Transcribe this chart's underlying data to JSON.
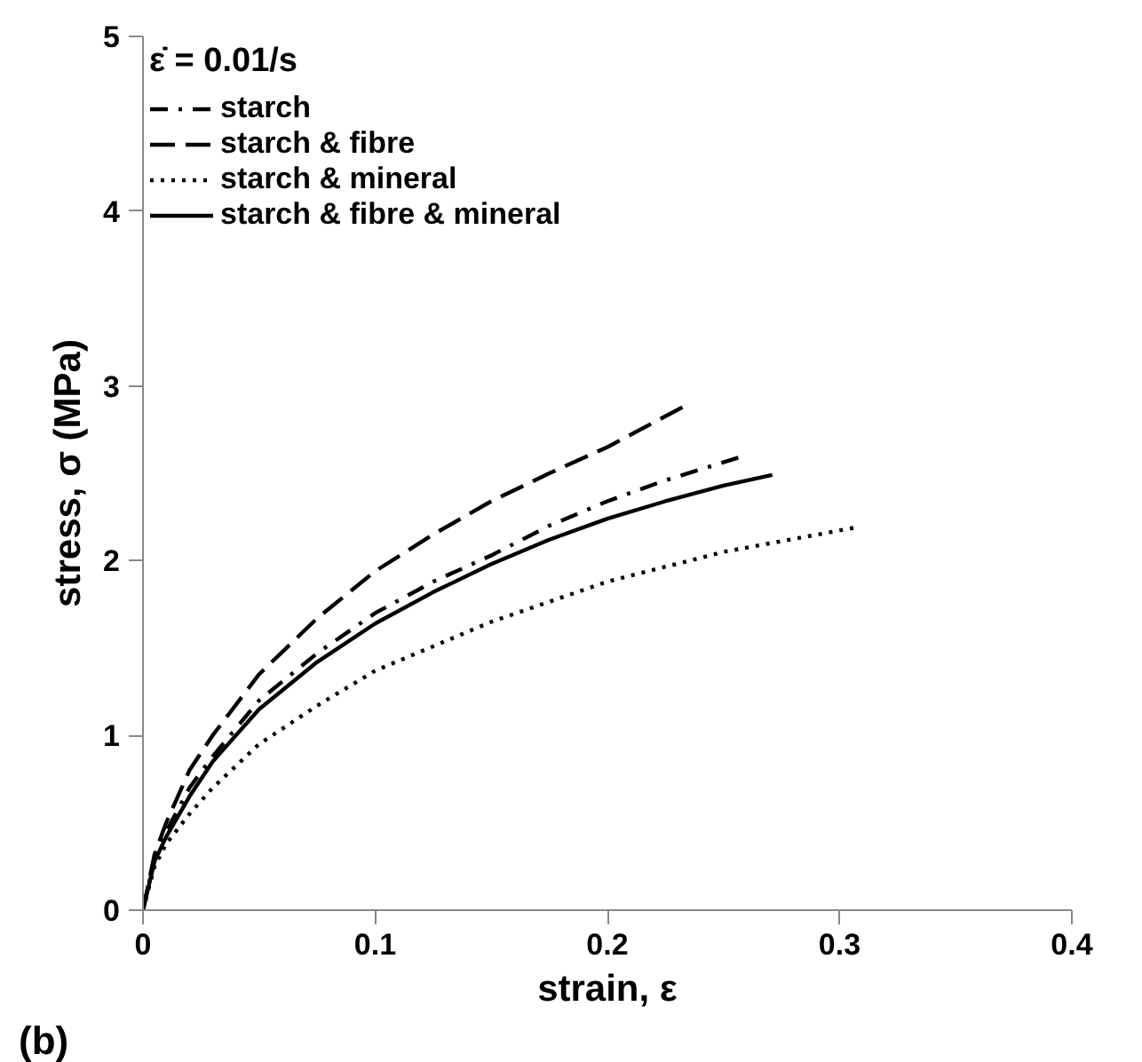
{
  "chart_data": {
    "type": "line",
    "xlabel": "strain, ε",
    "ylabel": "stress, σ (MPa)",
    "legend_title": "ε̇ = 0.01/s",
    "annotations": [
      "(b)"
    ],
    "xlim": [
      0,
      0.4
    ],
    "ylim": [
      0,
      5
    ],
    "xticks": [
      0,
      0.1,
      0.2,
      0.3,
      0.4
    ],
    "yticks": [
      0,
      1,
      2,
      3,
      4,
      5
    ],
    "grid": false,
    "legend": "top left",
    "series": [
      {
        "name": "starch",
        "color": "#000000",
        "line_style": "dashdot",
        "x": [
          0,
          0.005,
          0.01,
          0.02,
          0.03,
          0.05,
          0.075,
          0.1,
          0.125,
          0.15,
          0.175,
          0.2,
          0.225,
          0.259
        ],
        "values": [
          0,
          0.3,
          0.45,
          0.7,
          0.88,
          1.2,
          1.47,
          1.7,
          1.88,
          2.03,
          2.2,
          2.34,
          2.46,
          2.6
        ]
      },
      {
        "name": "starch & fibre",
        "color": "#000000",
        "line_style": "dashed",
        "x": [
          0,
          0.005,
          0.01,
          0.02,
          0.03,
          0.05,
          0.075,
          0.1,
          0.125,
          0.15,
          0.175,
          0.2,
          0.234
        ],
        "values": [
          0,
          0.32,
          0.5,
          0.8,
          1.0,
          1.35,
          1.67,
          1.94,
          2.15,
          2.34,
          2.5,
          2.65,
          2.89
        ]
      },
      {
        "name": "starch & mineral",
        "color": "#000000",
        "line_style": "dotted",
        "x": [
          0,
          0.005,
          0.01,
          0.02,
          0.03,
          0.05,
          0.075,
          0.1,
          0.15,
          0.2,
          0.25,
          0.307
        ],
        "values": [
          0,
          0.25,
          0.38,
          0.55,
          0.7,
          0.95,
          1.17,
          1.37,
          1.65,
          1.88,
          2.05,
          2.19
        ]
      },
      {
        "name": "starch & fibre & mineral",
        "color": "#000000",
        "line_style": "solid",
        "x": [
          0,
          0.005,
          0.01,
          0.02,
          0.03,
          0.05,
          0.075,
          0.1,
          0.125,
          0.15,
          0.175,
          0.2,
          0.225,
          0.25,
          0.271
        ],
        "values": [
          0,
          0.28,
          0.42,
          0.65,
          0.85,
          1.15,
          1.42,
          1.64,
          1.82,
          1.98,
          2.12,
          2.24,
          2.34,
          2.43,
          2.49
        ]
      }
    ]
  }
}
